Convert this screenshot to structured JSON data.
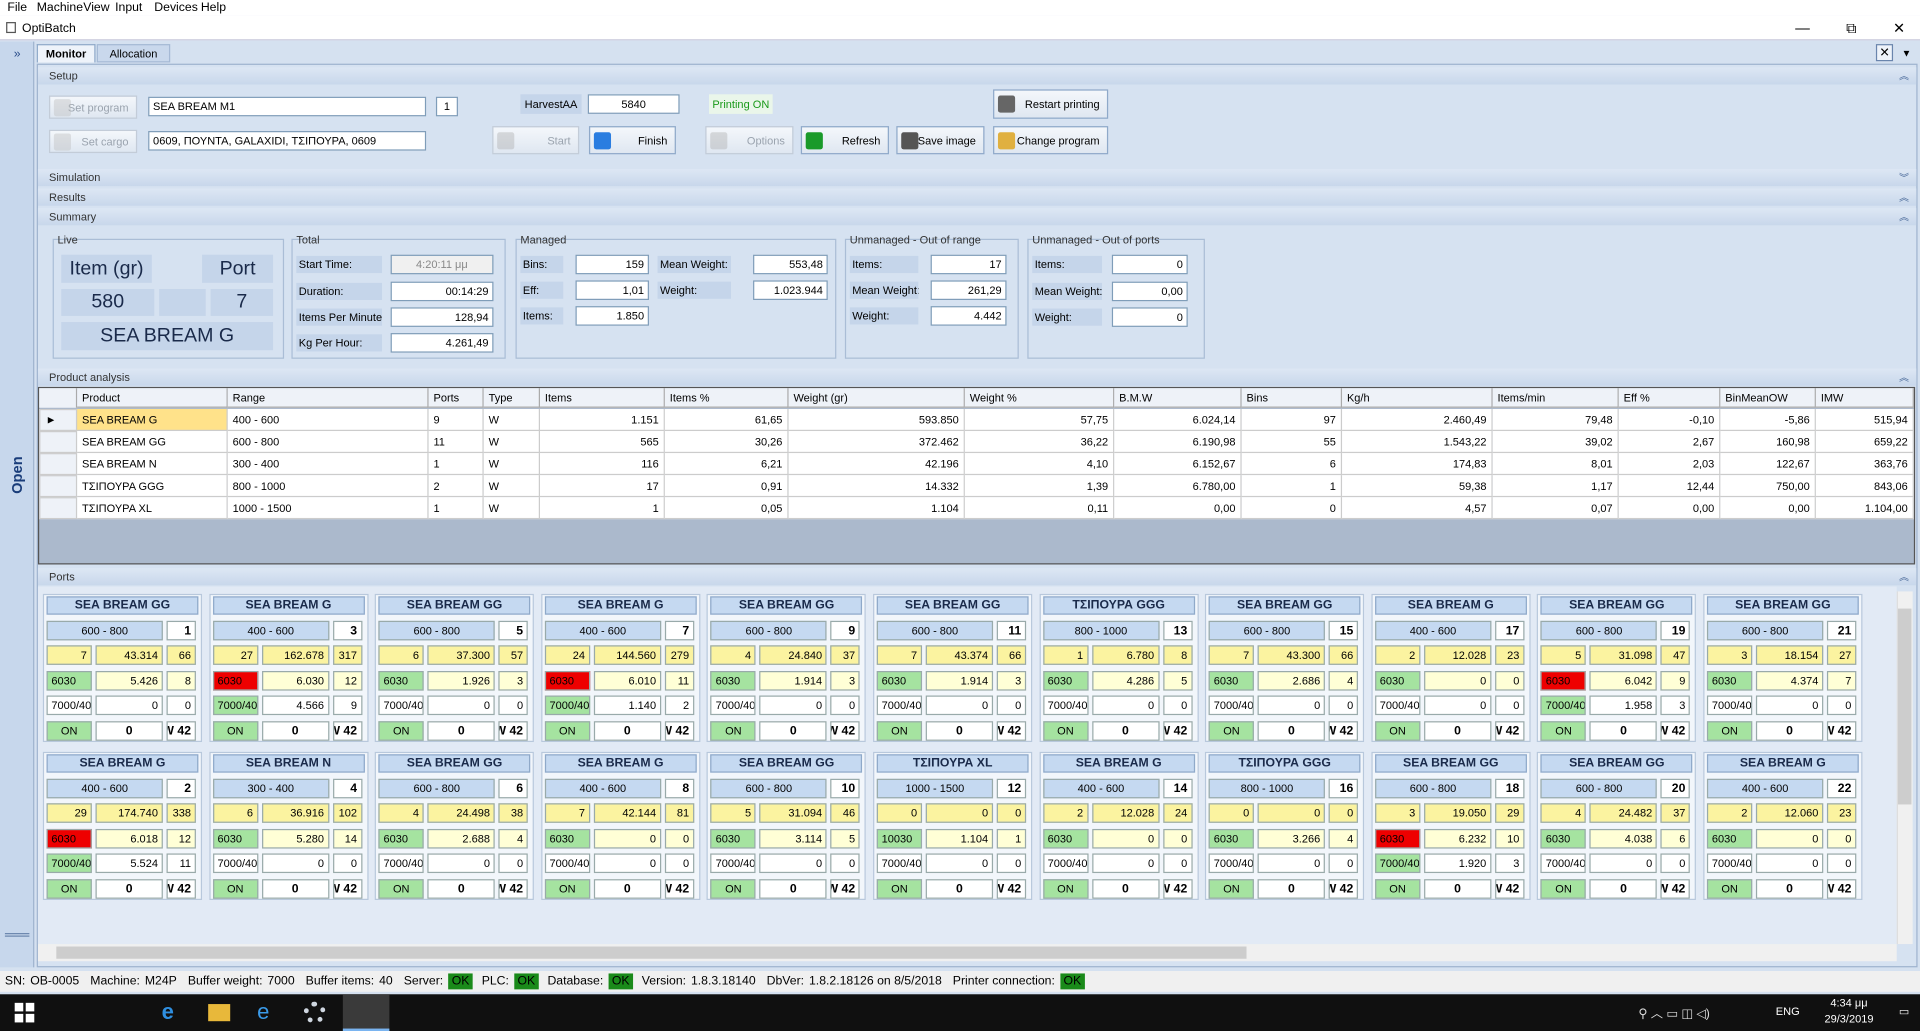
{
  "menu": [
    "File",
    "Machine",
    "View",
    "Input",
    "Devices",
    "Help"
  ],
  "window": {
    "title": "OptiBatch"
  },
  "tabs": [
    "Monitor",
    "Allocation"
  ],
  "side": "Open",
  "setup": {
    "title": "Setup",
    "set_program": "Set program",
    "program": "SEA BREAM M1",
    "program_no": "1",
    "set_cargo": "Set cargo",
    "cargo": "0609, ΠΟΥΝΤΑ, GALAXIDI, ΤΣΙΠΟΥΡΑ, 0609",
    "harvest_label": "HarvestAA",
    "harvest": "5840",
    "printing": "Printing ON",
    "restart": "Restart printing",
    "start": "Start",
    "finish": "Finish",
    "options": "Options",
    "refresh": "Refresh",
    "save": "Save image",
    "change": "Change program"
  },
  "sections": [
    "Simulation",
    "Results",
    "Summary"
  ],
  "live": {
    "title": "Live",
    "item_label": "Item (gr)",
    "port_label": "Port",
    "item": "580",
    "port": "7",
    "product": "SEA BREAM G"
  },
  "groups": [
    {
      "title": "Total",
      "rows": [
        [
          "Start Time:",
          "4:20:11 μμ"
        ],
        [
          "Duration:",
          "00:14:29"
        ],
        [
          "Items Per Minute:",
          "128,94"
        ],
        [
          "Kg Per Hour:",
          "4.261,49"
        ]
      ]
    },
    {
      "title": "Managed",
      "rows": [
        [
          "Bins:",
          "159"
        ],
        [
          "Eff:",
          "1,01"
        ],
        [
          "Items:",
          "1.850"
        ]
      ],
      "rows2": [
        [
          "Mean Weight:",
          "553,48"
        ],
        [
          "Weight:",
          "1.023.944"
        ]
      ]
    },
    {
      "title": "Unmanaged - Out of range",
      "rows": [
        [
          "Items:",
          "17"
        ],
        [
          "Mean Weight:",
          "261,29"
        ],
        [
          "Weight:",
          "4.442"
        ]
      ]
    },
    {
      "title": "Unmanaged - Out of ports",
      "rows": [
        [
          "Items:",
          "0"
        ],
        [
          "Mean Weight:",
          "0,00"
        ],
        [
          "Weight:",
          "0"
        ]
      ]
    }
  ],
  "products": {
    "title": "Product analysis",
    "columns": [
      "Product",
      "Range",
      "Ports",
      "Type",
      "Items",
      "Items %",
      "Weight (gr)",
      "Weight %",
      "B.M.W",
      "Bins",
      "Kg/h",
      "Items/min",
      "Eff %",
      "BinMeanOW",
      "IMW"
    ],
    "rows": [
      [
        "SEA BREAM G",
        "400 - 600",
        "9",
        "W",
        "1.151",
        "61,65",
        "593.850",
        "57,75",
        "6.024,14",
        "97",
        "2.460,49",
        "79,48",
        "-0,10",
        "-5,86",
        "515,94"
      ],
      [
        "SEA BREAM GG",
        "600 - 800",
        "11",
        "W",
        "565",
        "30,26",
        "372.462",
        "36,22",
        "6.190,98",
        "55",
        "1.543,22",
        "39,02",
        "2,67",
        "160,98",
        "659,22"
      ],
      [
        "SEA BREAM N",
        "300 - 400",
        "1",
        "W",
        "116",
        "6,21",
        "42.196",
        "4,10",
        "6.152,67",
        "6",
        "174,83",
        "8,01",
        "2,03",
        "122,67",
        "363,76"
      ],
      [
        "ΤΣΙΠΟΥΡΑ GGG",
        "800 - 1000",
        "2",
        "W",
        "17",
        "0,91",
        "14.332",
        "1,39",
        "6.780,00",
        "1",
        "59,38",
        "1,17",
        "12,44",
        "750,00",
        "843,06"
      ],
      [
        "ΤΣΙΠΟΥΡΑ XL",
        "1000 - 1500",
        "1",
        "W",
        "1",
        "0,05",
        "1.104",
        "0,11",
        "0,00",
        "0",
        "4,57",
        "0,07",
        "0,00",
        "0,00",
        "1.104,00"
      ]
    ]
  },
  "ports": {
    "title": "Ports",
    "rows": [
      [
        {
          "title": "SEA BREAM GG",
          "range": "600 - 800",
          "port": "1",
          "r1": [
            "7",
            "43.314",
            "66"
          ],
          "r2": [
            "6030",
            "5.426",
            "8"
          ],
          "r3": [
            "7000/40",
            "0",
            "0"
          ],
          "r4": [
            "ON",
            "0",
            "W 42"
          ],
          "alert": false
        },
        {
          "title": "SEA BREAM G",
          "range": "400 - 600",
          "port": "3",
          "r1": [
            "27",
            "162.678",
            "317"
          ],
          "r2": [
            "6030",
            "6.030",
            "12"
          ],
          "r3": [
            "7000/40",
            "4.566",
            "9"
          ],
          "r4": [
            "ON",
            "0",
            "W 42"
          ],
          "alert": true
        },
        {
          "title": "SEA BREAM GG",
          "range": "600 - 800",
          "port": "5",
          "r1": [
            "6",
            "37.300",
            "57"
          ],
          "r2": [
            "6030",
            "1.926",
            "3"
          ],
          "r3": [
            "7000/40",
            "0",
            "0"
          ],
          "r4": [
            "ON",
            "0",
            "W 42"
          ],
          "alert": false
        },
        {
          "title": "SEA BREAM G",
          "range": "400 - 600",
          "port": "7",
          "r1": [
            "24",
            "144.560",
            "279"
          ],
          "r2": [
            "6030",
            "6.010",
            "11"
          ],
          "r3": [
            "7000/40",
            "1.140",
            "2"
          ],
          "r4": [
            "ON",
            "0",
            "W 42"
          ],
          "alert": true
        },
        {
          "title": "SEA BREAM GG",
          "range": "600 - 800",
          "port": "9",
          "r1": [
            "4",
            "24.840",
            "37"
          ],
          "r2": [
            "6030",
            "1.914",
            "3"
          ],
          "r3": [
            "7000/40",
            "0",
            "0"
          ],
          "r4": [
            "ON",
            "0",
            "W 42"
          ],
          "alert": false
        },
        {
          "title": "SEA BREAM GG",
          "range": "600 - 800",
          "port": "11",
          "r1": [
            "7",
            "43.374",
            "66"
          ],
          "r2": [
            "6030",
            "1.914",
            "3"
          ],
          "r3": [
            "7000/40",
            "0",
            "0"
          ],
          "r4": [
            "ON",
            "0",
            "W 42"
          ],
          "alert": false
        },
        {
          "title": "ΤΣΙΠΟΥΡΑ GGG",
          "range": "800 - 1000",
          "port": "13",
          "r1": [
            "1",
            "6.780",
            "8"
          ],
          "r2": [
            "6030",
            "4.286",
            "5"
          ],
          "r3": [
            "7000/40",
            "0",
            "0"
          ],
          "r4": [
            "ON",
            "0",
            "W 42"
          ],
          "alert": false
        },
        {
          "title": "SEA BREAM GG",
          "range": "600 - 800",
          "port": "15",
          "r1": [
            "7",
            "43.300",
            "66"
          ],
          "r2": [
            "6030",
            "2.686",
            "4"
          ],
          "r3": [
            "7000/40",
            "0",
            "0"
          ],
          "r4": [
            "ON",
            "0",
            "W 42"
          ],
          "alert": false
        },
        {
          "title": "SEA BREAM G",
          "range": "400 - 600",
          "port": "17",
          "r1": [
            "2",
            "12.028",
            "23"
          ],
          "r2": [
            "6030",
            "0",
            "0"
          ],
          "r3": [
            "7000/40",
            "0",
            "0"
          ],
          "r4": [
            "ON",
            "0",
            "W 42"
          ],
          "alert": false
        },
        {
          "title": "SEA BREAM GG",
          "range": "600 - 800",
          "port": "19",
          "r1": [
            "5",
            "31.098",
            "47"
          ],
          "r2": [
            "6030",
            "6.042",
            "9"
          ],
          "r3": [
            "7000/40",
            "1.958",
            "3"
          ],
          "r4": [
            "ON",
            "0",
            "W 42"
          ],
          "alert": true
        },
        {
          "title": "SEA BREAM GG",
          "range": "600 - 800",
          "port": "21",
          "r1": [
            "3",
            "18.154",
            "27"
          ],
          "r2": [
            "6030",
            "4.374",
            "7"
          ],
          "r3": [
            "7000/40",
            "0",
            "0"
          ],
          "r4": [
            "ON",
            "0",
            "W 42"
          ],
          "alert": false
        }
      ],
      [
        {
          "title": "SEA BREAM G",
          "range": "400 - 600",
          "port": "2",
          "r1": [
            "29",
            "174.740",
            "338"
          ],
          "r2": [
            "6030",
            "6.018",
            "12"
          ],
          "r3": [
            "7000/40",
            "5.524",
            "11"
          ],
          "r4": [
            "ON",
            "0",
            "W 42"
          ],
          "alert": true
        },
        {
          "title": "SEA BREAM N",
          "range": "300 - 400",
          "port": "4",
          "r1": [
            "6",
            "36.916",
            "102"
          ],
          "r2": [
            "6030",
            "5.280",
            "14"
          ],
          "r3": [
            "7000/40",
            "0",
            "0"
          ],
          "r4": [
            "ON",
            "0",
            "W 42"
          ],
          "alert": false
        },
        {
          "title": "SEA BREAM GG",
          "range": "600 - 800",
          "port": "6",
          "r1": [
            "4",
            "24.498",
            "38"
          ],
          "r2": [
            "6030",
            "2.688",
            "4"
          ],
          "r3": [
            "7000/40",
            "0",
            "0"
          ],
          "r4": [
            "ON",
            "0",
            "W 42"
          ],
          "alert": false
        },
        {
          "title": "SEA BREAM G",
          "range": "400 - 600",
          "port": "8",
          "r1": [
            "7",
            "42.144",
            "81"
          ],
          "r2": [
            "6030",
            "0",
            "0"
          ],
          "r3": [
            "7000/40",
            "0",
            "0"
          ],
          "r4": [
            "ON",
            "0",
            "W 42"
          ],
          "alert": false
        },
        {
          "title": "SEA BREAM GG",
          "range": "600 - 800",
          "port": "10",
          "r1": [
            "5",
            "31.094",
            "46"
          ],
          "r2": [
            "6030",
            "3.114",
            "5"
          ],
          "r3": [
            "7000/40",
            "0",
            "0"
          ],
          "r4": [
            "ON",
            "0",
            "W 42"
          ],
          "alert": false
        },
        {
          "title": "ΤΣΙΠΟΥΡΑ XL",
          "range": "1000 - 1500",
          "port": "12",
          "r1": [
            "0",
            "0",
            "0"
          ],
          "r2": [
            "10030",
            "1.104",
            "1"
          ],
          "r3": [
            "7000/40",
            "0",
            "0"
          ],
          "r4": [
            "ON",
            "0",
            "W 42"
          ],
          "alert": false
        },
        {
          "title": "SEA BREAM G",
          "range": "400 - 600",
          "port": "14",
          "r1": [
            "2",
            "12.028",
            "24"
          ],
          "r2": [
            "6030",
            "0",
            "0"
          ],
          "r3": [
            "7000/40",
            "0",
            "0"
          ],
          "r4": [
            "ON",
            "0",
            "W 42"
          ],
          "alert": false
        },
        {
          "title": "ΤΣΙΠΟΥΡΑ GGG",
          "range": "800 - 1000",
          "port": "16",
          "r1": [
            "0",
            "0",
            "0"
          ],
          "r2": [
            "6030",
            "3.266",
            "4"
          ],
          "r3": [
            "7000/40",
            "0",
            "0"
          ],
          "r4": [
            "ON",
            "0",
            "W 42"
          ],
          "alert": false
        },
        {
          "title": "SEA BREAM GG",
          "range": "600 - 800",
          "port": "18",
          "r1": [
            "3",
            "19.050",
            "29"
          ],
          "r2": [
            "6030",
            "6.232",
            "10"
          ],
          "r3": [
            "7000/40",
            "1.920",
            "3"
          ],
          "r4": [
            "ON",
            "0",
            "W 42"
          ],
          "alert": true
        },
        {
          "title": "SEA BREAM GG",
          "range": "600 - 800",
          "port": "20",
          "r1": [
            "4",
            "24.482",
            "37"
          ],
          "r2": [
            "6030",
            "4.038",
            "6"
          ],
          "r3": [
            "7000/40",
            "0",
            "0"
          ],
          "r4": [
            "ON",
            "0",
            "W 42"
          ],
          "alert": false
        },
        {
          "title": "SEA BREAM G",
          "range": "400 - 600",
          "port": "22",
          "r1": [
            "2",
            "12.060",
            "23"
          ],
          "r2": [
            "6030",
            "0",
            "0"
          ],
          "r3": [
            "7000/40",
            "0",
            "0"
          ],
          "r4": [
            "ON",
            "0",
            "W 42"
          ],
          "alert": false
        }
      ]
    ]
  },
  "status": [
    {
      "label": "SN:",
      "value": "OB-0005"
    },
    {
      "label": "Machine:",
      "value": "M24P"
    },
    {
      "label": "Buffer weight:",
      "value": "7000"
    },
    {
      "label": "Buffer items:",
      "value": "40"
    },
    {
      "label": "Server:",
      "value": "OK",
      "ok": true
    },
    {
      "label": "PLC:",
      "value": "OK",
      "ok": true
    },
    {
      "label": "Database:",
      "value": "OK",
      "ok": true
    },
    {
      "label": "Version:",
      "value": "1.8.3.18140"
    },
    {
      "label": "DbVer:",
      "value": "1.8.2.18126 on 8/5/2018"
    },
    {
      "label": "Printer connection:",
      "value": "OK",
      "ok": true
    }
  ],
  "taskbar": {
    "lang": "ENG",
    "time": "4:34 μμ",
    "date": "29/3/2019"
  }
}
